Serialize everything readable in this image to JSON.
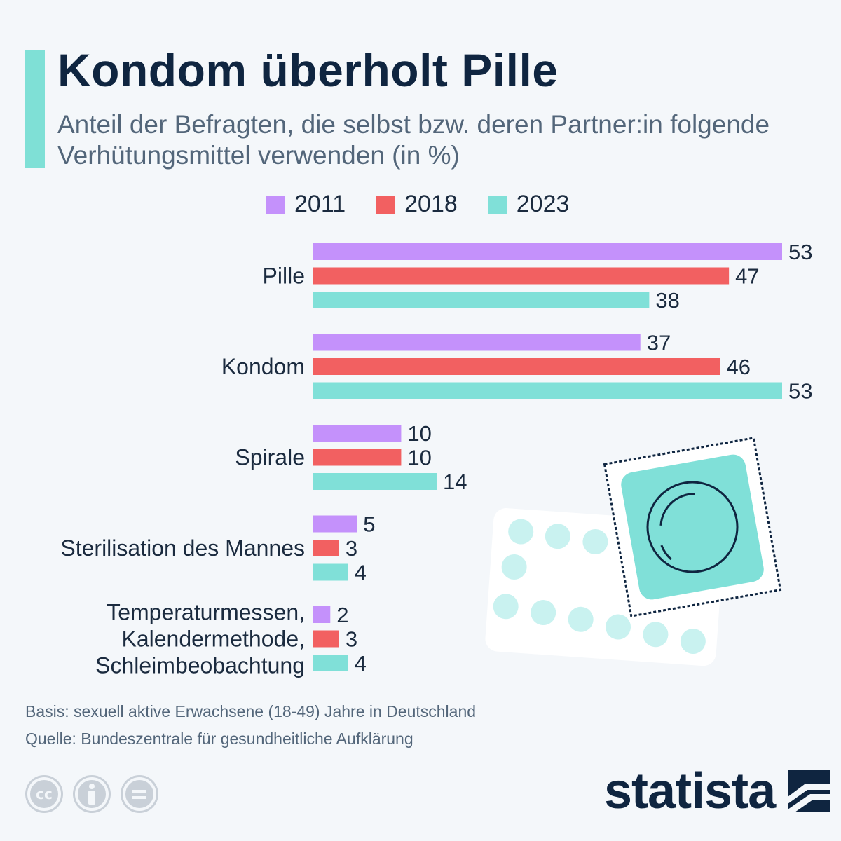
{
  "header": {
    "title": "Kondom überholt Pille",
    "subtitle": "Anteil der Befragten, die selbst bzw. deren Partner:in folgende Verhütungsmittel verwenden (in %)"
  },
  "chart_data": {
    "type": "bar",
    "orientation": "horizontal",
    "title": "Kondom überholt Pille",
    "subtitle": "Anteil der Befragten, die selbst bzw. deren Partner:in folgende Verhütungsmittel verwenden (in %)",
    "categories": [
      [
        "Pille"
      ],
      [
        "Kondom"
      ],
      [
        "Spirale"
      ],
      [
        "Sterilisation des Mannes"
      ],
      [
        "Temperaturmessen,",
        "Kalendermethode,",
        "Schleimbeobachtung"
      ]
    ],
    "series": [
      {
        "name": "2011",
        "color": "#c491fb",
        "values": [
          53,
          37,
          10,
          5,
          2
        ]
      },
      {
        "name": "2018",
        "color": "#f26061",
        "values": [
          47,
          46,
          10,
          3,
          3
        ]
      },
      {
        "name": "2023",
        "color": "#80e0d8",
        "values": [
          38,
          53,
          14,
          4,
          4
        ]
      }
    ],
    "xlim": [
      0,
      53
    ],
    "legend_position": "top",
    "grid": false,
    "xlabel": "",
    "ylabel": ""
  },
  "footer": {
    "basis": "Basis: sexuell aktive Erwachsene (18-49) Jahre in Deutschland",
    "source": "Quelle: Bundeszentrale für gesundheitliche Aufklärung",
    "cc_icons": [
      "cc-icon",
      "attribution-icon",
      "noderivatives-icon"
    ],
    "brand": "statista"
  },
  "colors": {
    "accent": "#7fe0d6",
    "title": "#0f2540",
    "text": "#1b2b3f",
    "muted": "#53667a"
  }
}
